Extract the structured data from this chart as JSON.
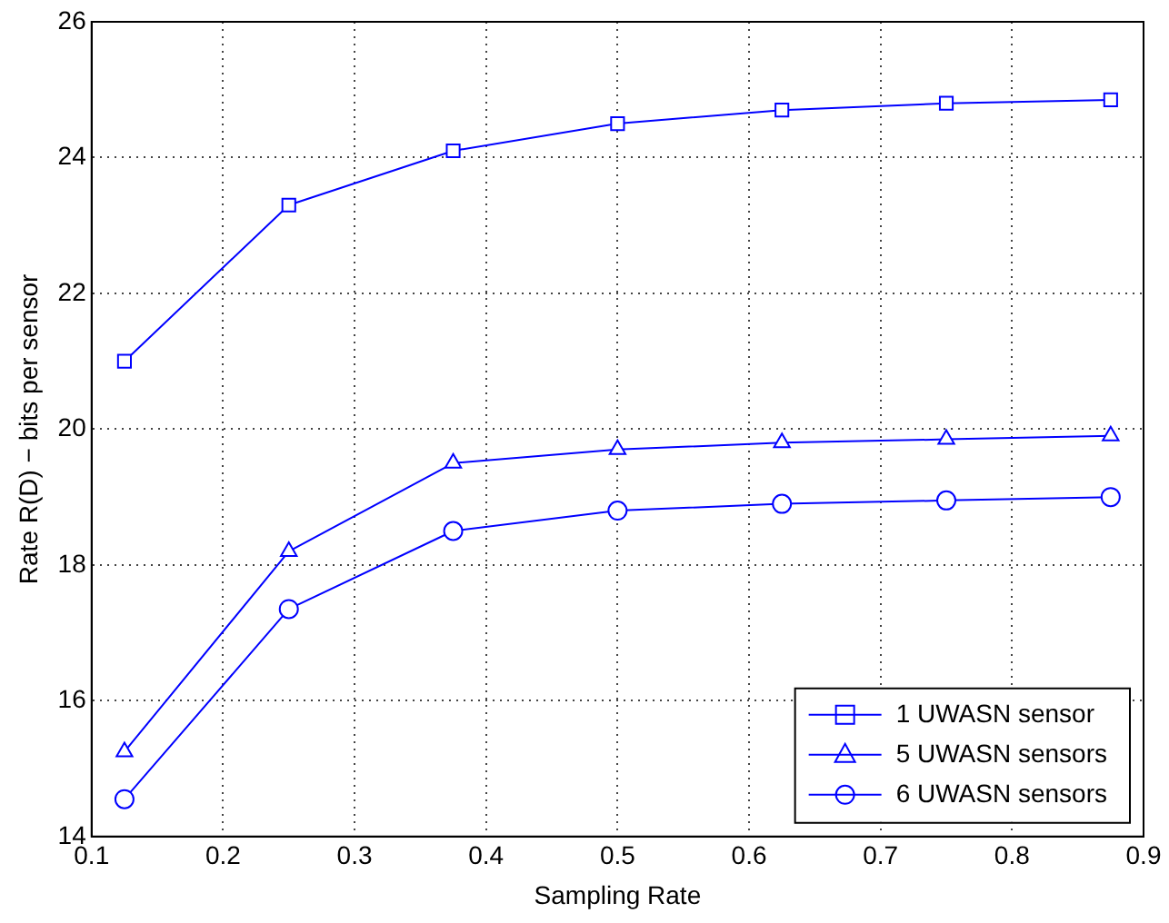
{
  "chart_data": {
    "type": "line",
    "xlabel": "Sampling Rate",
    "ylabel": "Rate R(D) − bits per sensor",
    "x": [
      0.125,
      0.25,
      0.375,
      0.5,
      0.625,
      0.75,
      0.875
    ],
    "series": [
      {
        "name": "1 UWASN sensor",
        "color": "#0000ff",
        "marker": "square",
        "values": [
          21.0,
          23.3,
          24.1,
          24.5,
          24.7,
          24.8,
          24.85
        ]
      },
      {
        "name": "5 UWASN sensors",
        "color": "#0000ff",
        "marker": "triangle",
        "values": [
          15.25,
          18.2,
          19.5,
          19.7,
          19.8,
          19.85,
          19.9
        ]
      },
      {
        "name": "6 UWASN sensors",
        "color": "#0000ff",
        "marker": "circle",
        "values": [
          14.55,
          17.35,
          18.5,
          18.8,
          18.9,
          18.95,
          19.0
        ]
      }
    ],
    "xlim": [
      0.1,
      0.9
    ],
    "xticks": [
      0.1,
      0.2,
      0.3,
      0.4,
      0.5,
      0.6,
      0.7,
      0.8,
      0.9
    ],
    "ylim": [
      14,
      26
    ],
    "yticks": [
      14,
      16,
      18,
      20,
      22,
      24,
      26
    ],
    "grid": true,
    "legend": "bottom right",
    "line_style": "solid"
  }
}
